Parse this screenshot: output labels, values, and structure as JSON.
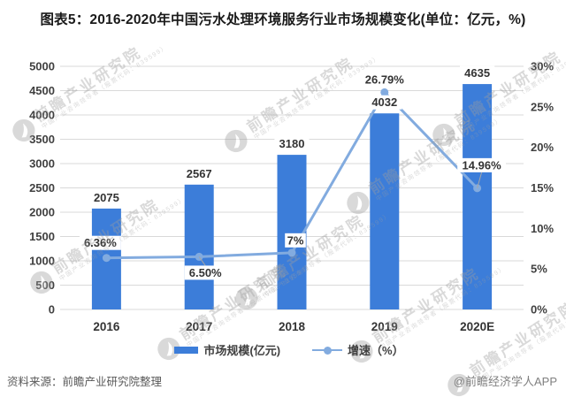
{
  "title": "图表5：2016-2020年中国污水处理环境服务行业市场规模变化(单位：亿元，%)",
  "chart_data": {
    "type": "combo",
    "categories": [
      "2016",
      "2017",
      "2018",
      "2019",
      "2020E"
    ],
    "series": [
      {
        "name": "市场规模(亿元)",
        "chart": "bar",
        "axis": "left",
        "values": [
          2075,
          2567,
          3180,
          4032,
          4635
        ],
        "labels": [
          "2075",
          "2567",
          "3180",
          "4032",
          "4635"
        ],
        "color": "#3C7DD9"
      },
      {
        "name": "增速（%）",
        "chart": "line",
        "axis": "right",
        "values": [
          6.36,
          6.5,
          7,
          26.79,
          14.96
        ],
        "labels": [
          "6.36%",
          "6.50%",
          "7%",
          "26.79%",
          "14.96%"
        ],
        "color": "#82ABDF",
        "label_offsets": [
          [
            -7,
            -17
          ],
          [
            7,
            18
          ],
          [
            4,
            -14
          ],
          [
            0,
            -14.5
          ],
          [
            5,
            -26
          ]
        ],
        "label_leaders": [
          false,
          true,
          false,
          false,
          true
        ]
      }
    ],
    "left_axis": {
      "min": 0,
      "max": 5000,
      "step": 500
    },
    "right_axis": {
      "min": 0,
      "max": 30,
      "step": 5,
      "suffix": "%"
    },
    "grid": true,
    "legend_position": "bottom"
  },
  "footer": {
    "source": "资料来源：前瞻产业研究院整理",
    "credit": "@前瞻经济学人APP"
  },
  "watermark": {
    "text": "前瞻产业研究院",
    "subtext": "中国产业咨询领导者（股票代码：839599）"
  },
  "colors": {
    "bar": "#3C7DD9",
    "line": "#82ABDF",
    "grid": "#D9D9D9",
    "tick_text": "#404040",
    "label_text": "#333333",
    "leader": "#A6A6A6",
    "source_text": "#595959",
    "credit_text": "#808080",
    "title_text": "#1A1A1A",
    "watermark": "#9E9E9E"
  }
}
